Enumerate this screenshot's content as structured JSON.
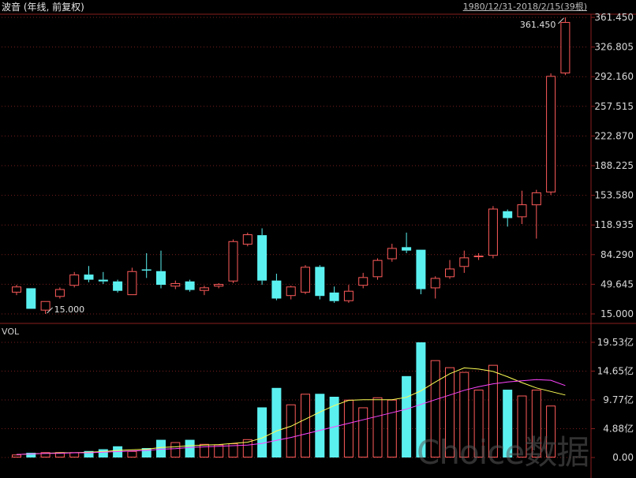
{
  "header": {
    "title": "波音 (年线, 前复权)",
    "range": "1980/12/31-2018/2/15(39根)",
    "vol_label": "VOL"
  },
  "watermark": "Choice数据",
  "colors": {
    "up": "#ff5b5b",
    "down": "#5bf0f0",
    "ma_fast": "#ffff55",
    "ma_slow": "#ff44ff",
    "grid": "#7a1f1f",
    "text": "#d8d8d8"
  },
  "chart_data": [
    {
      "type": "candlestick",
      "title": "波音 (年线, 前复权)",
      "y_ticks": [
        "361.450",
        "326.805",
        "292.160",
        "257.515",
        "222.870",
        "188.225",
        "153.580",
        "118.935",
        "84.290",
        "49.645",
        "15.000"
      ],
      "ylim": [
        15.0,
        361.45
      ],
      "annotations": {
        "max": "361.450",
        "min": "15.000"
      },
      "candles": [
        {
          "o": 40,
          "c": 47,
          "h": 49,
          "l": 37
        },
        {
          "o": 45,
          "c": 21,
          "h": 45,
          "l": 21
        },
        {
          "o": 19,
          "c": 30,
          "h": 30,
          "l": 15
        },
        {
          "o": 35,
          "c": 44,
          "h": 46,
          "l": 33
        },
        {
          "o": 48,
          "c": 61,
          "h": 64,
          "l": 46
        },
        {
          "o": 61,
          "c": 55,
          "h": 71,
          "l": 52
        },
        {
          "o": 55,
          "c": 53,
          "h": 64,
          "l": 50
        },
        {
          "o": 53,
          "c": 42,
          "h": 55,
          "l": 40
        },
        {
          "o": 37,
          "c": 65,
          "h": 69,
          "l": 37
        },
        {
          "o": 67,
          "c": 66,
          "h": 86,
          "l": 57
        },
        {
          "o": 65,
          "c": 49,
          "h": 89,
          "l": 45
        },
        {
          "o": 47,
          "c": 51,
          "h": 54,
          "l": 44
        },
        {
          "o": 53,
          "c": 43,
          "h": 55,
          "l": 41
        },
        {
          "o": 42,
          "c": 46,
          "h": 48,
          "l": 37
        },
        {
          "o": 47,
          "c": 50,
          "h": 51,
          "l": 45
        },
        {
          "o": 53,
          "c": 100,
          "h": 102,
          "l": 51
        },
        {
          "o": 96,
          "c": 108,
          "h": 110,
          "l": 94
        },
        {
          "o": 107,
          "c": 54,
          "h": 115,
          "l": 49
        },
        {
          "o": 54,
          "c": 33,
          "h": 62,
          "l": 31
        },
        {
          "o": 36,
          "c": 47,
          "h": 48,
          "l": 32
        },
        {
          "o": 40,
          "c": 70,
          "h": 72,
          "l": 38
        },
        {
          "o": 70,
          "c": 36,
          "h": 72,
          "l": 32
        },
        {
          "o": 40,
          "c": 30,
          "h": 47,
          "l": 28
        },
        {
          "o": 30,
          "c": 42,
          "h": 49,
          "l": 28
        },
        {
          "o": 48,
          "c": 58,
          "h": 63,
          "l": 45
        },
        {
          "o": 58,
          "c": 78,
          "h": 80,
          "l": 55
        },
        {
          "o": 79,
          "c": 92,
          "h": 97,
          "l": 76
        },
        {
          "o": 93,
          "c": 89,
          "h": 110,
          "l": 86
        },
        {
          "o": 90,
          "c": 44,
          "h": 90,
          "l": 38
        },
        {
          "o": 45,
          "c": 57,
          "h": 59,
          "l": 33
        },
        {
          "o": 58,
          "c": 68,
          "h": 78,
          "l": 56
        },
        {
          "o": 70,
          "c": 81,
          "h": 89,
          "l": 63
        },
        {
          "o": 82,
          "c": 83,
          "h": 86,
          "l": 78
        },
        {
          "o": 83,
          "c": 138,
          "h": 141,
          "l": 80
        },
        {
          "o": 135,
          "c": 127,
          "h": 137,
          "l": 117
        },
        {
          "o": 128,
          "c": 143,
          "h": 159,
          "l": 120
        },
        {
          "o": 142,
          "c": 157,
          "h": 160,
          "l": 103
        },
        {
          "o": 157,
          "c": 293,
          "h": 296,
          "l": 154
        },
        {
          "o": 296,
          "c": 356,
          "h": 361.45,
          "l": 294
        }
      ]
    },
    {
      "type": "bar",
      "title": "VOL",
      "unit": "亿",
      "y_ticks": [
        "19.53亿",
        "14.65亿",
        "9.77亿",
        "4.88亿",
        "0.00"
      ],
      "ylim": [
        0,
        19.53
      ],
      "volumes": [
        0.5,
        0.8,
        0.9,
        0.9,
        0.9,
        1.1,
        1.4,
        1.9,
        1.1,
        1.6,
        3.0,
        2.6,
        3.0,
        2.3,
        2.2,
        2.4,
        3.1,
        8.5,
        11.8,
        9.0,
        10.8,
        10.8,
        10.3,
        9.8,
        8.5,
        10.2,
        9.8,
        13.8,
        19.53,
        16.5,
        15.3,
        14.5,
        11.5,
        15.7,
        11.5,
        10.5,
        11.5,
        8.8,
        0.0
      ],
      "series": [
        {
          "name": "",
          "values": [
            0.5,
            0.6,
            0.7,
            0.8,
            0.8,
            0.9,
            1.0,
            1.2,
            1.3,
            1.4,
            1.7,
            1.8,
            2.0,
            2.1,
            2.2,
            2.4,
            2.6,
            3.3,
            4.5,
            5.3,
            6.5,
            7.7,
            8.8,
            9.7,
            9.8,
            9.8,
            9.8,
            10.2,
            11.3,
            12.8,
            14.2,
            15.2,
            15.0,
            14.6,
            13.7,
            12.7,
            11.8,
            11.2,
            10.6
          ]
        },
        {
          "name": "",
          "values": [
            0.5,
            0.6,
            0.7,
            0.7,
            0.8,
            0.8,
            0.9,
            1.0,
            1.1,
            1.2,
            1.4,
            1.5,
            1.7,
            1.8,
            1.9,
            2.0,
            2.1,
            2.4,
            2.9,
            3.4,
            4.0,
            4.6,
            5.2,
            5.8,
            6.4,
            7.0,
            7.6,
            8.2,
            9.0,
            9.8,
            10.6,
            11.4,
            12.0,
            12.5,
            12.8,
            13.0,
            13.2,
            13.1,
            12.2
          ]
        }
      ]
    }
  ]
}
